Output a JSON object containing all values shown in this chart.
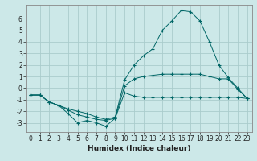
{
  "xlabel": "Humidex (Indice chaleur)",
  "bg_color": "#cce8e8",
  "grid_color": "#aacccc",
  "line_color": "#006666",
  "x": [
    0,
    1,
    2,
    3,
    4,
    5,
    6,
    7,
    8,
    9,
    10,
    11,
    12,
    13,
    14,
    15,
    16,
    17,
    18,
    19,
    20,
    21,
    22,
    23
  ],
  "line1": [
    -0.6,
    -0.6,
    -1.2,
    -1.5,
    -2.2,
    -3.0,
    -2.8,
    -3.0,
    -3.3,
    -2.6,
    -0.4,
    -0.7,
    -0.8,
    -0.8,
    -0.8,
    -0.8,
    -0.8,
    -0.8,
    -0.8,
    -0.8,
    -0.8,
    -0.8,
    -0.8,
    -0.9
  ],
  "line2": [
    -0.6,
    -0.6,
    -1.2,
    -1.5,
    -1.9,
    -2.3,
    -2.5,
    -2.7,
    -2.8,
    -2.6,
    0.2,
    0.8,
    1.0,
    1.1,
    1.2,
    1.2,
    1.2,
    1.2,
    1.2,
    1.0,
    0.8,
    0.8,
    -0.1,
    -0.9
  ],
  "line3": [
    -0.6,
    -0.6,
    -1.2,
    -1.5,
    -1.8,
    -2.0,
    -2.2,
    -2.5,
    -2.7,
    -2.5,
    0.7,
    2.0,
    2.8,
    3.4,
    5.0,
    5.8,
    6.7,
    6.6,
    5.8,
    4.0,
    2.0,
    0.9,
    0.0,
    -0.9
  ],
  "ylim": [
    -3.8,
    7.2
  ],
  "yticks": [
    -3,
    -2,
    -1,
    0,
    1,
    2,
    3,
    4,
    5,
    6
  ],
  "xticks": [
    0,
    1,
    2,
    3,
    4,
    5,
    6,
    7,
    8,
    9,
    10,
    11,
    12,
    13,
    14,
    15,
    16,
    17,
    18,
    19,
    20,
    21,
    22,
    23
  ],
  "tick_fontsize": 5.5,
  "xlabel_fontsize": 6.5
}
